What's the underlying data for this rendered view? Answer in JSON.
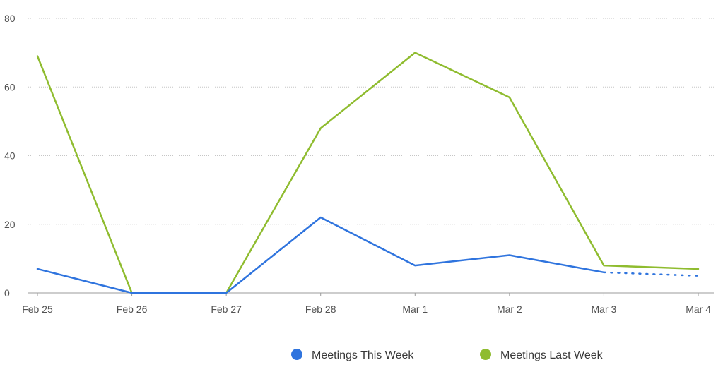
{
  "chart_data": {
    "type": "line",
    "categories": [
      "Feb 25",
      "Feb 26",
      "Feb 27",
      "Feb 28",
      "Mar 1",
      "Mar 2",
      "Mar 3",
      "Mar 4"
    ],
    "ylim": [
      0,
      80
    ],
    "yticks": [
      0,
      20,
      40,
      60,
      80
    ],
    "grid": true,
    "legend_placement": "bottom-center",
    "series": [
      {
        "name": "Meetings This Week",
        "color": "#2f74de",
        "values": [
          7,
          0,
          0,
          22,
          8,
          11,
          6,
          5
        ],
        "projected_from_index": 6
      },
      {
        "name": "Meetings Last Week",
        "color": "#8fbc2f",
        "values": [
          69,
          0,
          0,
          48,
          70,
          57,
          8,
          7
        ]
      }
    ]
  }
}
